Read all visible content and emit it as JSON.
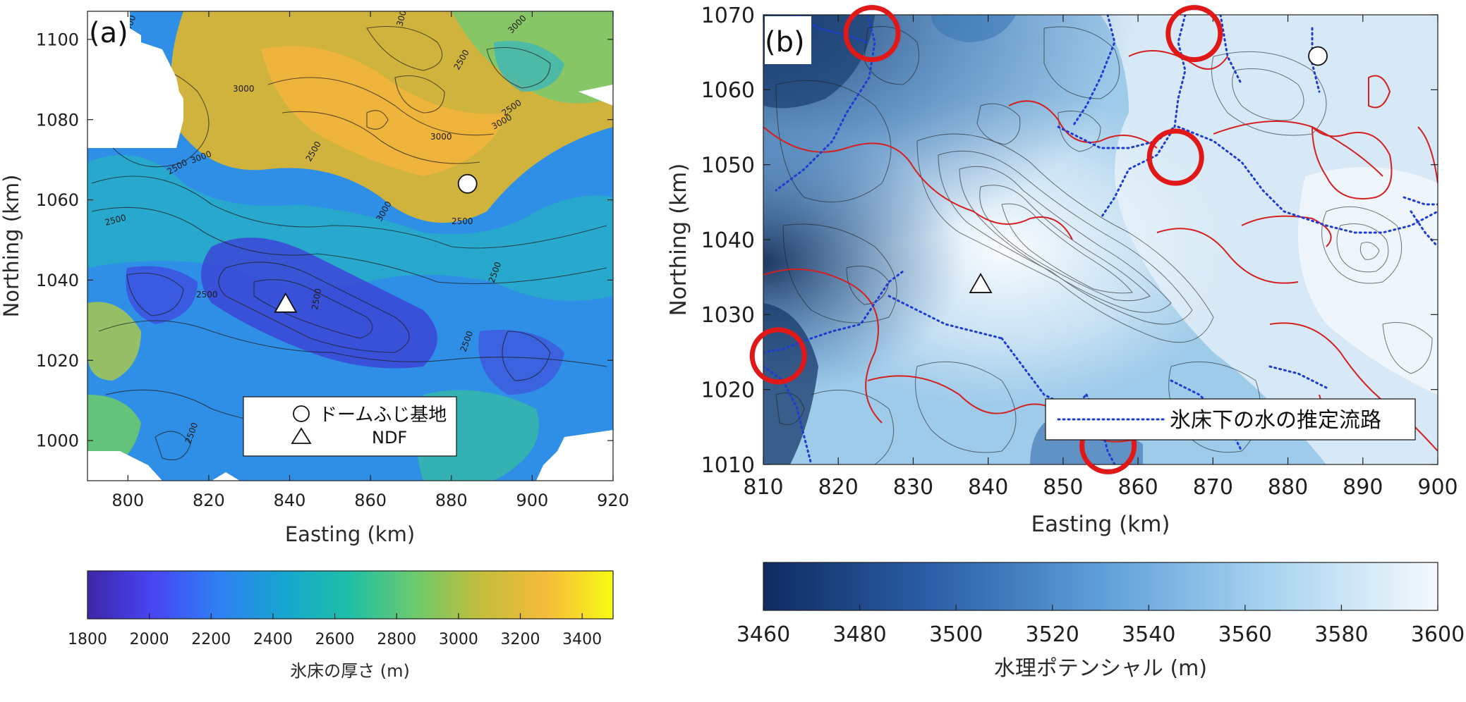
{
  "chart_data": [
    {
      "type": "heatmap",
      "panel_label": "(a)",
      "xlabel": "Easting (km)",
      "ylabel": "Northing (km)",
      "xlim": [
        790,
        920
      ],
      "ylim": [
        990,
        1107
      ],
      "xticks": [
        800,
        820,
        840,
        860,
        880,
        900,
        920
      ],
      "yticks": [
        1000,
        1020,
        1040,
        1060,
        1080,
        1100
      ],
      "contour_labels": [
        "3000",
        "3000",
        "3000",
        "3000",
        "3000",
        "3000",
        "3000",
        "3000",
        "2500",
        "2500",
        "2500",
        "2500",
        "2500",
        "2500",
        "2500",
        "2500",
        "2500",
        "2500",
        "2500"
      ],
      "markers": [
        {
          "symbol": "circle",
          "x": 884,
          "y": 1064
        },
        {
          "symbol": "triangle",
          "x": 839,
          "y": 1034
        }
      ],
      "legend": {
        "position": "lower-right",
        "entries": [
          {
            "symbol": "circle",
            "label": "ドームふじ基地"
          },
          {
            "symbol": "triangle",
            "label": "NDF"
          }
        ]
      },
      "colorbar": {
        "label": "氷床の厚さ (m)",
        "range": [
          1800,
          3500
        ],
        "ticks": [
          1800,
          2000,
          2200,
          2400,
          2600,
          2800,
          3000,
          3200,
          3400
        ],
        "colormap": [
          "#3e26a8",
          "#4745f5",
          "#2f80f2",
          "#16a6cf",
          "#1fbfa6",
          "#6dca6c",
          "#c4bd3b",
          "#f6bb3a",
          "#f9fb15"
        ]
      }
    },
    {
      "type": "heatmap",
      "panel_label": "(b)",
      "xlabel": "Easting (km)",
      "ylabel": "Northing (km)",
      "xlim": [
        810,
        900
      ],
      "ylim": [
        1010,
        1070
      ],
      "xticks": [
        810,
        820,
        830,
        840,
        850,
        860,
        870,
        880,
        890,
        900
      ],
      "yticks": [
        1010,
        1020,
        1030,
        1040,
        1050,
        1060,
        1070
      ],
      "markers": [
        {
          "symbol": "circle",
          "x": 884,
          "y": 1064.5
        },
        {
          "symbol": "triangle",
          "x": 839,
          "y": 1034
        }
      ],
      "highlight_circles": [
        {
          "x": 824.5,
          "y": 1067.5
        },
        {
          "x": 867.5,
          "y": 1067.5
        },
        {
          "x": 865,
          "y": 1051
        },
        {
          "x": 812,
          "y": 1024.5
        },
        {
          "x": 856,
          "y": 1012.5
        }
      ],
      "legend": {
        "position": "lower-right",
        "entries": [
          {
            "symbol": "dotted-line",
            "color": "#1e3cd2",
            "label": "氷床下の水の推定流路"
          }
        ]
      },
      "colorbar": {
        "label": "水理ポテンシャル (m)",
        "range": [
          3460,
          3600
        ],
        "ticks": [
          3460,
          3480,
          3500,
          3520,
          3540,
          3560,
          3580,
          3600
        ],
        "colormap": [
          "#0f2b60",
          "#2b5fa8",
          "#5d9ed8",
          "#a7d3ef",
          "#f5f9fd"
        ]
      }
    }
  ],
  "colors": {
    "highlight_circle": "#e01818",
    "flow_path": "#1e3cd2",
    "contour": "#1b1b1b",
    "contour_highlight": "#d42020"
  }
}
